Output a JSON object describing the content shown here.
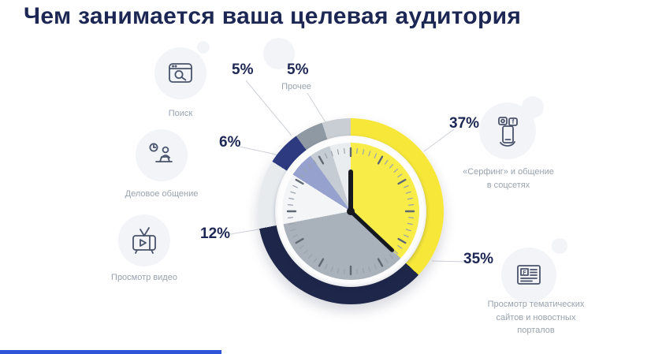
{
  "title": "Чем занимается ваша целевая аудитория",
  "chart_data": {
    "type": "pie",
    "title": "Чем занимается ваша целевая аудитория",
    "unit": "%",
    "legend_position": "around",
    "start_angle_deg": 0,
    "segments": [
      {
        "label": "«Серфинг» и общение в соцсетях",
        "value": 37,
        "color": "#f6e738",
        "face_color": "#f8ec49"
      },
      {
        "label": "Просмотр тематических сайтов и новостных порталов",
        "value": 35,
        "color": "#1e2749",
        "face_color": "#a9b1bb"
      },
      {
        "label": "Просмотр видео",
        "value": 12,
        "color": "#e7ebee",
        "face_color": "#f3f5f7"
      },
      {
        "label": "Деловое общение",
        "value": 6,
        "color": "#2e3a80",
        "face_color": "#96a1cd"
      },
      {
        "label": "Поиск",
        "value": 5,
        "color": "#8f99a4",
        "face_color": "#c6ccd3"
      },
      {
        "label": "Прочее",
        "value": 5,
        "color": "#c9ced4",
        "face_color": "#e9edf0"
      }
    ],
    "clock_hands_deg": [
      0,
      133.2
    ]
  },
  "callouts": {
    "search": {
      "pct": "5%",
      "label": "Поиск"
    },
    "other": {
      "pct": "5%",
      "label": "Прочее"
    },
    "business": {
      "pct": "6%",
      "label": "Деловое общение"
    },
    "video": {
      "pct": "12%",
      "label": "Просмотр видео"
    },
    "surf": {
      "pct": "37%",
      "label": "«Серфинг» и общение\nв соцсетях"
    },
    "news": {
      "pct": "35%",
      "label": "Просмотр тематических\nсайтов и новостных\nпорталов"
    }
  },
  "icons": {
    "search": "browser-search-icon",
    "business": "business-chat-icon",
    "video": "tv-play-icon",
    "surf": "phone-social-icon",
    "news": "news-portal-icon"
  },
  "video_progress": {
    "percent": 34,
    "color": "#2e55d8"
  }
}
